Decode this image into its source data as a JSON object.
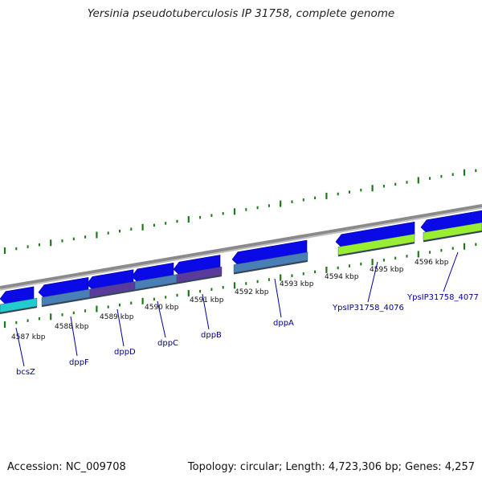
{
  "title": "Yersinia pseudotuberculosis IP 31758, complete genome",
  "footer": {
    "accession": "Accession: NC_009708",
    "summary": "Topology: circular; Length: 4,723,306 bp; Genes: 4,257"
  },
  "map": {
    "colors": {
      "backbone": "#8a8a8a",
      "gene_arrow": "#0a0ae6",
      "tick": "#1a7a1a",
      "label": "#000099",
      "cds_cyan": "#22cccc",
      "cds_steel": "#4a7fb5",
      "cds_purple": "#5a3a9a",
      "cds_lime": "#99ee33"
    },
    "kbp_labels": [
      "4587 kbp",
      "4588 kbp",
      "4589 kbp",
      "4590 kbp",
      "4591 kbp",
      "4592 kbp",
      "4593 kbp",
      "4594 kbp",
      "4595 kbp",
      "4596 kbp"
    ],
    "genes": [
      {
        "name": "bcsZ",
        "color": "cds_cyan"
      },
      {
        "name": "dppF",
        "color": "cds_steel"
      },
      {
        "name": "dppD",
        "color": "cds_purple"
      },
      {
        "name": "dppC",
        "color": "cds_steel"
      },
      {
        "name": "dppB",
        "color": "cds_purple"
      },
      {
        "name": "dppA",
        "color": "cds_steel"
      },
      {
        "name": "YpsIP31758_4076",
        "color": "cds_lime"
      },
      {
        "name": "YpsIP31758_4077",
        "color": "cds_lime"
      }
    ]
  }
}
